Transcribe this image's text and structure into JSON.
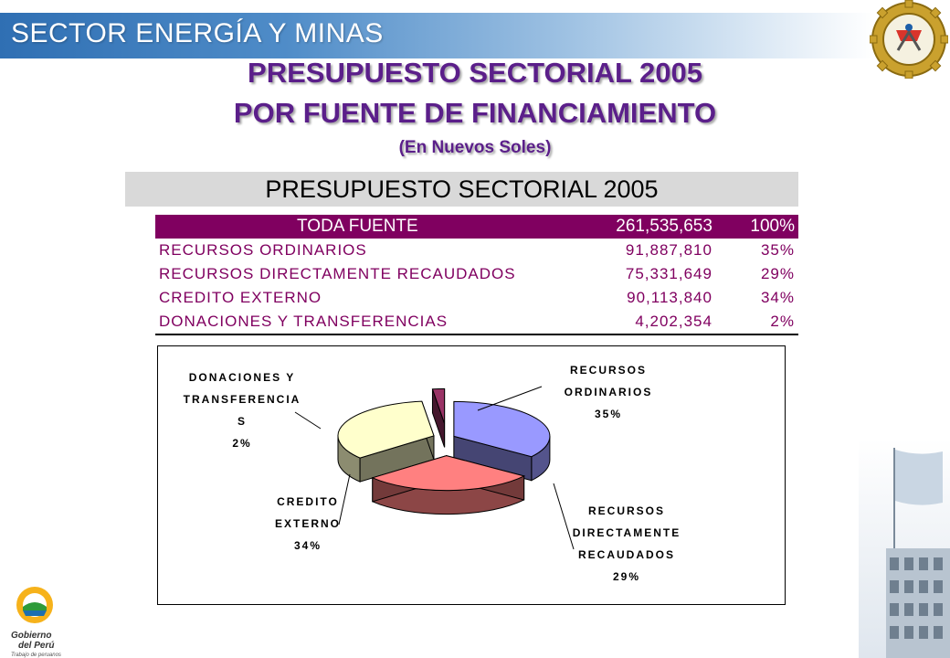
{
  "header": {
    "sector_title": "SECTOR ENERGÍA Y MINAS"
  },
  "titles": {
    "line1": "PRESUPUESTO  SECTORIAL 2005",
    "line2": "POR FUENTE DE FINANCIAMIENTO",
    "line3": "(En Nuevos Soles)"
  },
  "table_title": "PRESUPUESTO SECTORIAL  2005",
  "table": {
    "total": {
      "label": "TODA FUENTE",
      "amount": "261,535,653",
      "pct": "100%"
    },
    "rows": [
      {
        "label": "RECURSOS ORDINARIOS",
        "amount": "91,887,810",
        "pct": "35%"
      },
      {
        "label": "RECURSOS DIRECTAMENTE RECAUDADOS",
        "amount": "75,331,649",
        "pct": "29%"
      },
      {
        "label": "CREDITO EXTERNO",
        "amount": "90,113,840",
        "pct": "34%"
      },
      {
        "label": "DONACIONES Y TRANSFERENCIAS",
        "amount": "4,202,354",
        "pct": "2%"
      }
    ]
  },
  "chart_data": {
    "type": "pie",
    "style": "3d exploded",
    "categories": [
      "RECURSOS ORDINARIOS",
      "RECURSOS DIRECTAMENTE RECAUDADOS",
      "CREDITO EXTERNO",
      "DONACIONES Y TRANSFERENCIAS"
    ],
    "values": [
      35,
      29,
      34,
      2
    ],
    "colors": [
      "#9999ff",
      "#ff8080",
      "#ffffcc",
      "#993366"
    ],
    "labels": {
      "ro": {
        "lines": [
          "RECURSOS",
          "ORDINARIOS",
          "35%"
        ]
      },
      "rdr": {
        "lines": [
          "RECURSOS",
          "DIRECTAMENTE",
          "RECAUDADOS",
          "29%"
        ]
      },
      "ce": {
        "lines": [
          "CREDITO",
          "EXTERNO",
          "34%"
        ]
      },
      "dt": {
        "lines": [
          "DONACIONES Y",
          "TRANSFERENCIA",
          "S",
          "2%"
        ]
      }
    }
  },
  "logos": {
    "emblem": "ministerio-energia-minas-emblem",
    "gobierno": {
      "brand": "Gobierno del Perú",
      "tagline": "Trabajo de peruanos"
    }
  }
}
